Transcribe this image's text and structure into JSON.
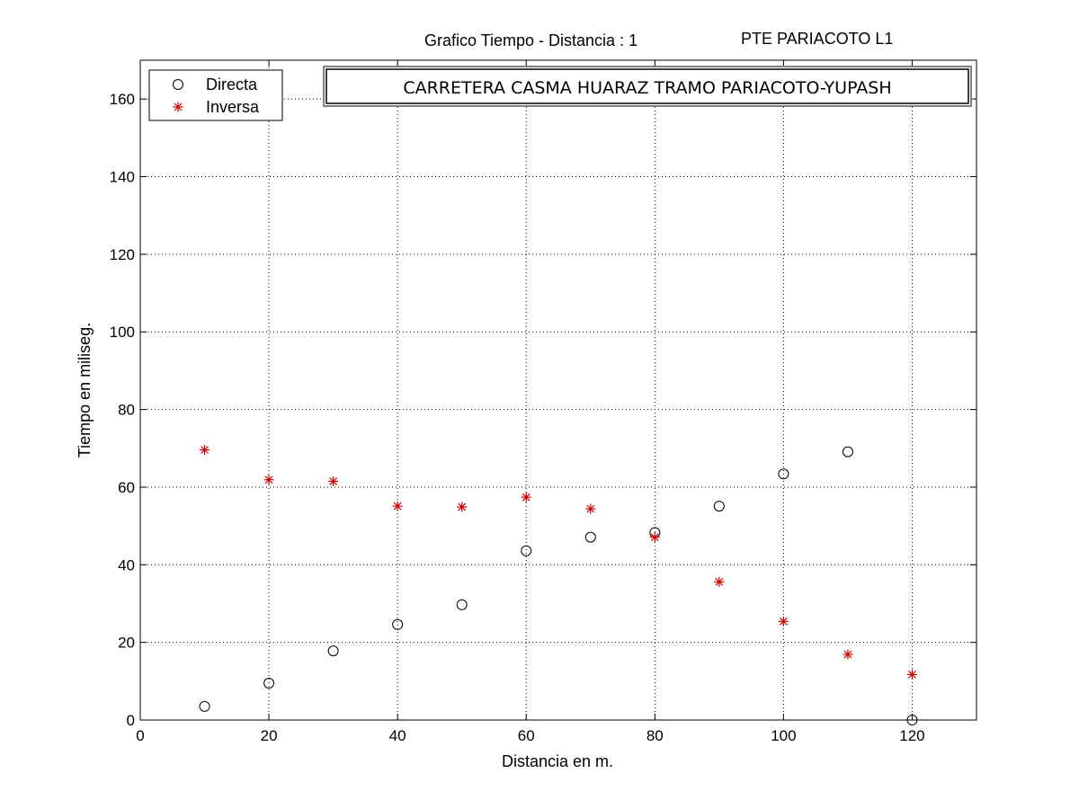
{
  "header": {
    "title": "Grafico Tiempo - Distancia :  1",
    "code": "PTE PARIACOTO L1"
  },
  "chart_data": {
    "type": "scatter",
    "title": "Grafico Tiempo - Distancia :  1",
    "subtitle": "CARRETERA CASMA HUARAZ TRAMO PARIACOTO-YUPASH",
    "xlabel": "Distancia en m.",
    "ylabel": "Tiempo en miliseg.",
    "xlim": [
      0,
      130
    ],
    "ylim": [
      0,
      170
    ],
    "xticks": [
      0,
      20,
      40,
      60,
      80,
      100,
      120
    ],
    "yticks": [
      0,
      20,
      40,
      60,
      80,
      100,
      120,
      140,
      160
    ],
    "grid": true,
    "legend_position": "top-left",
    "series": [
      {
        "name": "Directa",
        "marker": "circle",
        "color": "#000000",
        "x": [
          10,
          20,
          30,
          40,
          50,
          60,
          70,
          80,
          90,
          100,
          110,
          120
        ],
        "y": [
          3.5,
          9.5,
          17.8,
          24.6,
          29.7,
          43.6,
          47.1,
          48.3,
          55.1,
          63.4,
          69.1,
          0
        ]
      },
      {
        "name": "Inversa",
        "marker": "asterisk",
        "color": "#cc0000",
        "x": [
          10,
          20,
          30,
          40,
          50,
          60,
          70,
          80,
          90,
          100,
          110,
          120
        ],
        "y": [
          69.6,
          61.9,
          61.5,
          55.1,
          54.9,
          57.4,
          54.4,
          47.1,
          35.6,
          25.4,
          16.9,
          11.7
        ]
      }
    ]
  }
}
